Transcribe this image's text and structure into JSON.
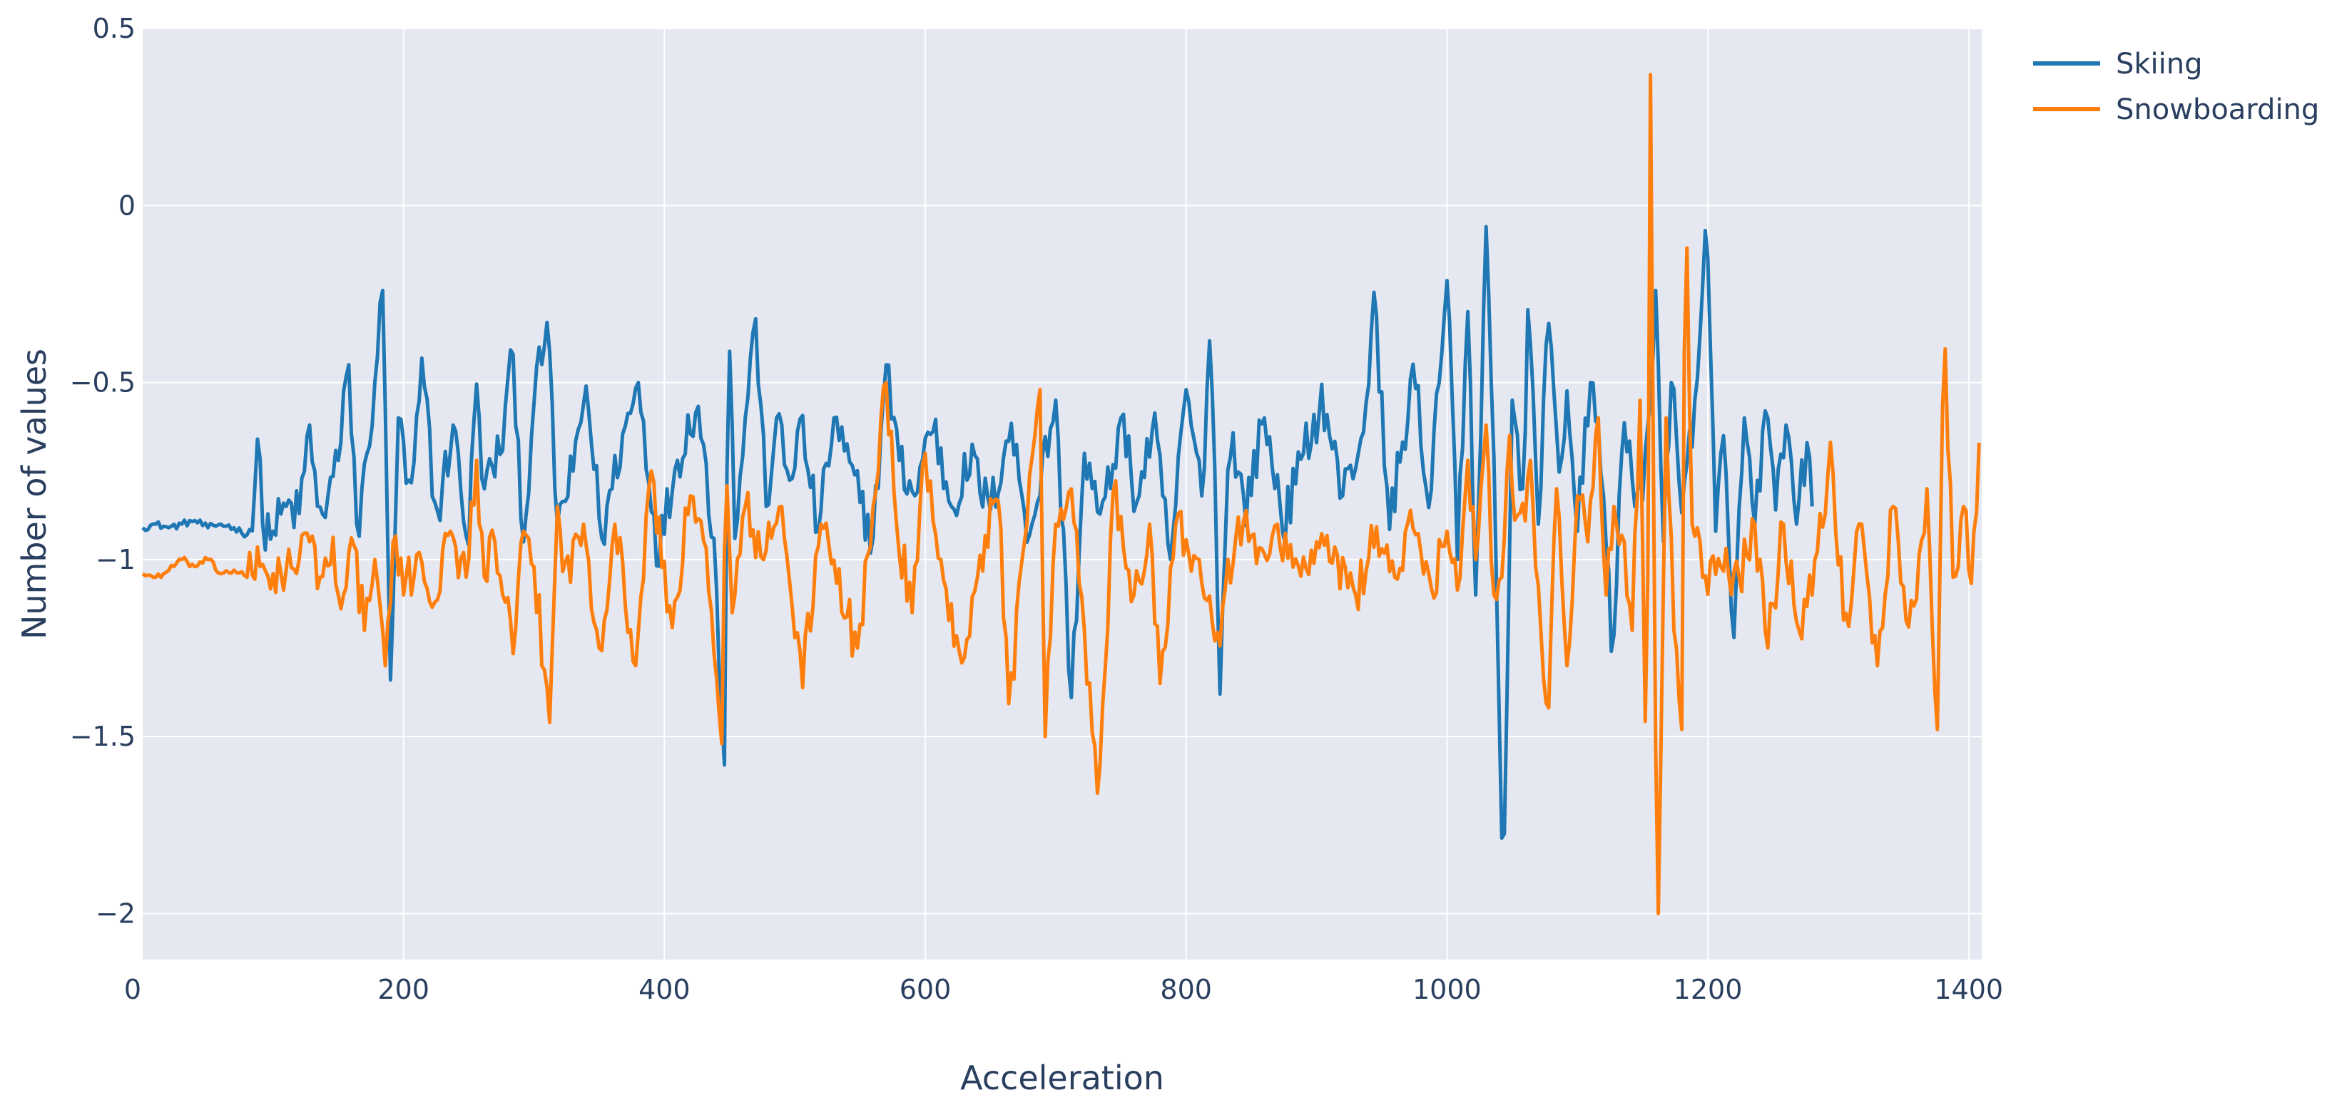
{
  "chart_data": {
    "type": "line",
    "title": "",
    "xlabel": "Acceleration",
    "ylabel": "Number of values",
    "xlim": [
      0,
      1410
    ],
    "ylim": [
      -2.13,
      0.5
    ],
    "x_ticks": [
      0,
      200,
      400,
      600,
      800,
      1000,
      1200,
      1400
    ],
    "x_tick_labels": [
      "0",
      "200",
      "400",
      "600",
      "800",
      "1000",
      "1200",
      "1400"
    ],
    "y_ticks": [
      0.5,
      0,
      -0.5,
      -1,
      -1.5,
      -2
    ],
    "y_tick_labels": [
      "0.5",
      "0",
      "−0.5",
      "−1",
      "−1.5",
      "−2"
    ],
    "grid": true,
    "legend_position": "top-right",
    "background_color": "#e5e8f0",
    "series": [
      {
        "name": "Skiing",
        "color": "#1f77b4",
        "x_start": 0,
        "x_step": 2,
        "keypoints": [
          [
            0,
            -0.91
          ],
          [
            10,
            -0.9
          ],
          [
            20,
            -0.91
          ],
          [
            30,
            -0.9
          ],
          [
            40,
            -0.89
          ],
          [
            50,
            -0.91
          ],
          [
            60,
            -0.9
          ],
          [
            70,
            -0.91
          ],
          [
            80,
            -0.93
          ],
          [
            85,
            -0.88
          ],
          [
            88,
            -0.66
          ],
          [
            92,
            -0.9
          ],
          [
            100,
            -0.92
          ],
          [
            110,
            -0.85
          ],
          [
            120,
            -0.87
          ],
          [
            128,
            -0.62
          ],
          [
            135,
            -0.9
          ],
          [
            150,
            -0.72
          ],
          [
            158,
            -0.45
          ],
          [
            165,
            -0.95
          ],
          [
            172,
            -0.7
          ],
          [
            178,
            -0.5
          ],
          [
            184,
            -0.24
          ],
          [
            190,
            -1.34
          ],
          [
            196,
            -0.6
          ],
          [
            205,
            -0.85
          ],
          [
            215,
            -0.45
          ],
          [
            225,
            -0.9
          ],
          [
            238,
            -0.62
          ],
          [
            250,
            -0.96
          ],
          [
            255,
            -0.5
          ],
          [
            262,
            -0.8
          ],
          [
            275,
            -0.68
          ],
          [
            284,
            -0.42
          ],
          [
            292,
            -0.95
          ],
          [
            300,
            -0.56
          ],
          [
            310,
            -0.33
          ],
          [
            318,
            -0.9
          ],
          [
            330,
            -0.75
          ],
          [
            340,
            -0.51
          ],
          [
            352,
            -0.94
          ],
          [
            365,
            -0.7
          ],
          [
            380,
            -0.5
          ],
          [
            395,
            -0.98
          ],
          [
            410,
            -0.72
          ],
          [
            425,
            -0.55
          ],
          [
            438,
            -0.94
          ],
          [
            446,
            -1.58
          ],
          [
            449,
            -0.24
          ],
          [
            454,
            -0.94
          ],
          [
            462,
            -0.6
          ],
          [
            470,
            -0.32
          ],
          [
            478,
            -0.85
          ],
          [
            486,
            -0.6
          ],
          [
            495,
            -0.78
          ],
          [
            505,
            -0.62
          ],
          [
            518,
            -0.92
          ],
          [
            530,
            -0.6
          ],
          [
            545,
            -0.78
          ],
          [
            560,
            -0.94
          ],
          [
            570,
            -0.45
          ],
          [
            580,
            -0.72
          ],
          [
            592,
            -0.82
          ],
          [
            605,
            -0.6
          ],
          [
            620,
            -0.85
          ],
          [
            635,
            -0.72
          ],
          [
            650,
            -0.86
          ],
          [
            665,
            -0.62
          ],
          [
            680,
            -0.93
          ],
          [
            700,
            -0.55
          ],
          [
            712,
            -1.39
          ],
          [
            722,
            -0.7
          ],
          [
            735,
            -0.9
          ],
          [
            750,
            -0.6
          ],
          [
            762,
            -0.84
          ],
          [
            775,
            -0.62
          ],
          [
            788,
            -1.0
          ],
          [
            800,
            -0.52
          ],
          [
            812,
            -0.82
          ],
          [
            819,
            -0.31
          ],
          [
            826,
            -1.38
          ],
          [
            833,
            -0.62
          ],
          [
            845,
            -0.86
          ],
          [
            860,
            -0.6
          ],
          [
            875,
            -0.9
          ],
          [
            890,
            -0.7
          ],
          [
            905,
            -0.55
          ],
          [
            920,
            -0.82
          ],
          [
            935,
            -0.65
          ],
          [
            945,
            -0.27
          ],
          [
            955,
            -0.9
          ],
          [
            965,
            -0.7
          ],
          [
            975,
            -0.44
          ],
          [
            985,
            -0.9
          ],
          [
            993,
            -0.5
          ],
          [
            1001,
            -0.18
          ],
          [
            1008,
            -1.0
          ],
          [
            1016,
            -0.3
          ],
          [
            1022,
            -1.1
          ],
          [
            1030,
            -0.06
          ],
          [
            1037,
            -0.9
          ],
          [
            1043,
            -2.0
          ],
          [
            1050,
            -0.55
          ],
          [
            1058,
            -0.8
          ],
          [
            1063,
            -0.25
          ],
          [
            1070,
            -0.9
          ],
          [
            1077,
            -0.32
          ],
          [
            1085,
            -0.72
          ],
          [
            1093,
            -0.55
          ],
          [
            1100,
            -0.92
          ],
          [
            1110,
            -0.5
          ],
          [
            1119,
            -0.72
          ],
          [
            1127,
            -1.33
          ],
          [
            1135,
            -0.55
          ],
          [
            1144,
            -0.85
          ],
          [
            1151,
            -0.8
          ],
          [
            1160,
            -0.24
          ],
          [
            1166,
            -0.95
          ],
          [
            1172,
            -0.5
          ],
          [
            1181,
            -0.85
          ],
          [
            1190,
            -0.55
          ],
          [
            1199,
            -0.07
          ],
          [
            1206,
            -0.92
          ],
          [
            1212,
            -0.65
          ],
          [
            1220,
            -1.22
          ],
          [
            1228,
            -0.6
          ],
          [
            1236,
            -0.9
          ],
          [
            1244,
            -0.58
          ],
          [
            1252,
            -0.86
          ],
          [
            1260,
            -0.62
          ],
          [
            1268,
            -0.9
          ],
          [
            1276,
            -0.67
          ],
          [
            1280,
            -0.85
          ]
        ]
      },
      {
        "name": "Snowboarding",
        "color": "#ff7f0e",
        "x_start": 0,
        "x_step": 2,
        "keypoints": [
          [
            0,
            -1.04
          ],
          [
            10,
            -1.05
          ],
          [
            20,
            -1.03
          ],
          [
            30,
            -1.0
          ],
          [
            40,
            -1.02
          ],
          [
            50,
            -1.0
          ],
          [
            60,
            -1.04
          ],
          [
            70,
            -1.03
          ],
          [
            80,
            -1.05
          ],
          [
            90,
            -1.02
          ],
          [
            100,
            -1.04
          ],
          [
            110,
            -1.03
          ],
          [
            120,
            -1.0
          ],
          [
            128,
            -0.95
          ],
          [
            136,
            -1.05
          ],
          [
            145,
            -0.98
          ],
          [
            154,
            -1.1
          ],
          [
            162,
            -0.96
          ],
          [
            170,
            -1.2
          ],
          [
            178,
            -1.0
          ],
          [
            186,
            -1.3
          ],
          [
            192,
            -0.95
          ],
          [
            200,
            -1.1
          ],
          [
            212,
            -0.98
          ],
          [
            224,
            -1.12
          ],
          [
            236,
            -0.92
          ],
          [
            248,
            -1.05
          ],
          [
            256,
            -0.72
          ],
          [
            262,
            -1.05
          ],
          [
            270,
            -0.95
          ],
          [
            278,
            -1.12
          ],
          [
            285,
            -1.28
          ],
          [
            292,
            -0.92
          ],
          [
            300,
            -1.02
          ],
          [
            312,
            -1.46
          ],
          [
            318,
            -0.85
          ],
          [
            325,
            -1.05
          ],
          [
            338,
            -0.9
          ],
          [
            350,
            -1.25
          ],
          [
            362,
            -0.9
          ],
          [
            378,
            -1.3
          ],
          [
            390,
            -0.75
          ],
          [
            405,
            -1.2
          ],
          [
            420,
            -0.82
          ],
          [
            435,
            -1.05
          ],
          [
            444,
            -1.52
          ],
          [
            447,
            -0.76
          ],
          [
            452,
            -1.15
          ],
          [
            462,
            -0.85
          ],
          [
            476,
            -1.0
          ],
          [
            490,
            -0.85
          ],
          [
            505,
            -1.35
          ],
          [
            520,
            -0.9
          ],
          [
            535,
            -1.1
          ],
          [
            548,
            -1.25
          ],
          [
            560,
            -0.85
          ],
          [
            570,
            -0.5
          ],
          [
            578,
            -0.9
          ],
          [
            590,
            -1.15
          ],
          [
            600,
            -0.7
          ],
          [
            612,
            -1.0
          ],
          [
            625,
            -1.3
          ],
          [
            640,
            -1.05
          ],
          [
            655,
            -0.8
          ],
          [
            665,
            -1.4
          ],
          [
            678,
            -0.9
          ],
          [
            688,
            -0.52
          ],
          [
            692,
            -1.5
          ],
          [
            700,
            -0.9
          ],
          [
            712,
            -0.8
          ],
          [
            722,
            -1.2
          ],
          [
            732,
            -1.66
          ],
          [
            745,
            -0.8
          ],
          [
            760,
            -1.1
          ],
          [
            772,
            -0.9
          ],
          [
            780,
            -1.35
          ],
          [
            792,
            -0.9
          ],
          [
            810,
            -1.0
          ],
          [
            825,
            -1.2
          ],
          [
            840,
            -0.88
          ],
          [
            855,
            -1.0
          ],
          [
            870,
            -0.9
          ],
          [
            885,
            -1.05
          ],
          [
            900,
            -0.95
          ],
          [
            915,
            -1.02
          ],
          [
            930,
            -1.1
          ],
          [
            945,
            -0.92
          ],
          [
            960,
            -1.05
          ],
          [
            975,
            -0.9
          ],
          [
            988,
            -1.08
          ],
          [
            1000,
            -0.92
          ],
          [
            1010,
            -1.05
          ],
          [
            1016,
            -0.72
          ],
          [
            1022,
            -1.0
          ],
          [
            1030,
            -0.62
          ],
          [
            1036,
            -1.1
          ],
          [
            1042,
            -1.05
          ],
          [
            1048,
            -0.65
          ],
          [
            1055,
            -0.95
          ],
          [
            1064,
            -0.72
          ],
          [
            1072,
            -1.2
          ],
          [
            1077,
            -1.5
          ],
          [
            1084,
            -0.8
          ],
          [
            1092,
            -1.3
          ],
          [
            1100,
            -0.82
          ],
          [
            1108,
            -0.95
          ],
          [
            1116,
            -0.6
          ],
          [
            1122,
            -1.1
          ],
          [
            1128,
            -0.85
          ],
          [
            1136,
            -0.95
          ],
          [
            1142,
            -1.2
          ],
          [
            1148,
            -0.55
          ],
          [
            1153,
            -1.72
          ],
          [
            1156,
            0.37
          ],
          [
            1159,
            -1.2
          ],
          [
            1162,
            -2.0
          ],
          [
            1168,
            -0.6
          ],
          [
            1174,
            -1.2
          ],
          [
            1180,
            -1.48
          ],
          [
            1183,
            0.04
          ],
          [
            1188,
            -0.9
          ],
          [
            1196,
            -1.05
          ],
          [
            1210,
            -1.02
          ],
          [
            1224,
            -1.05
          ],
          [
            1236,
            -0.9
          ],
          [
            1246,
            -1.25
          ],
          [
            1258,
            -0.9
          ],
          [
            1270,
            -1.2
          ],
          [
            1282,
            -1.0
          ],
          [
            1295,
            -0.7
          ],
          [
            1305,
            -1.2
          ],
          [
            1318,
            -0.9
          ],
          [
            1330,
            -1.3
          ],
          [
            1342,
            -0.85
          ],
          [
            1355,
            -1.2
          ],
          [
            1368,
            -0.8
          ],
          [
            1376,
            -1.48
          ],
          [
            1381,
            -0.32
          ],
          [
            1388,
            -1.05
          ],
          [
            1396,
            -0.85
          ],
          [
            1403,
            -1.05
          ],
          [
            1408,
            -0.67
          ]
        ]
      }
    ]
  }
}
